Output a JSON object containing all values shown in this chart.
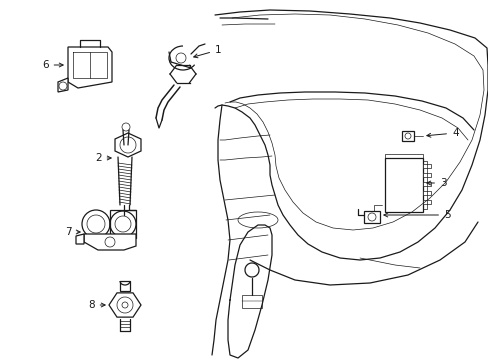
{
  "background_color": "#ffffff",
  "line_color": "#1a1a1a",
  "figsize": [
    4.89,
    3.6
  ],
  "dpi": 100,
  "label_fontsize": 7.5,
  "lw_main": 0.9,
  "lw_thin": 0.5
}
